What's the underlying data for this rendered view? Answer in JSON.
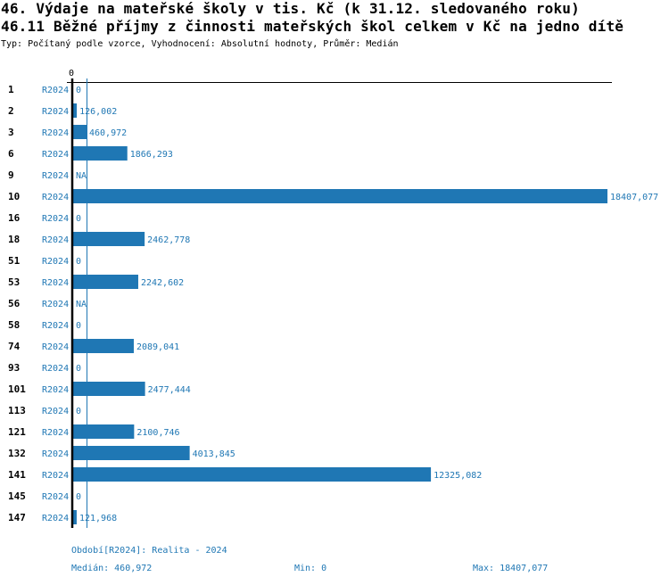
{
  "header": {
    "title": "46. Výdaje na mateřské školy v tis. Kč (k 31.12. sledovaného roku)",
    "subtitle": "46.11 Běžné příjmy z činnosti mateřských škol celkem v Kč na jedno dítě",
    "info": "Typ: Počítaný podle vzorce, Vyhodnocení: Absolutní hodnoty, Průměr: Medián"
  },
  "colors": {
    "bar": "#1f77b4",
    "axis": "#000000",
    "text_blue": "#1f77b4"
  },
  "chart_data": {
    "type": "bar",
    "orientation": "horizontal",
    "axis_zero_label": "0",
    "xlim": [
      0,
      18407.077
    ],
    "median": 460.972,
    "rows": [
      {
        "id": "1",
        "period": "R2024",
        "value": 0,
        "label": "0"
      },
      {
        "id": "2",
        "period": "R2024",
        "value": 126.002,
        "label": "126,002"
      },
      {
        "id": "3",
        "period": "R2024",
        "value": 460.972,
        "label": "460,972"
      },
      {
        "id": "6",
        "period": "R2024",
        "value": 1866.293,
        "label": "1866,293"
      },
      {
        "id": "9",
        "period": "R2024",
        "value": null,
        "label": "NA"
      },
      {
        "id": "10",
        "period": "R2024",
        "value": 18407.077,
        "label": "18407,077"
      },
      {
        "id": "16",
        "period": "R2024",
        "value": 0,
        "label": "0"
      },
      {
        "id": "18",
        "period": "R2024",
        "value": 2462.778,
        "label": "2462,778"
      },
      {
        "id": "51",
        "period": "R2024",
        "value": 0,
        "label": "0"
      },
      {
        "id": "53",
        "period": "R2024",
        "value": 2242.602,
        "label": "2242,602"
      },
      {
        "id": "56",
        "period": "R2024",
        "value": null,
        "label": "NA"
      },
      {
        "id": "58",
        "period": "R2024",
        "value": 0,
        "label": "0"
      },
      {
        "id": "74",
        "period": "R2024",
        "value": 2089.041,
        "label": "2089,041"
      },
      {
        "id": "93",
        "period": "R2024",
        "value": 0,
        "label": "0"
      },
      {
        "id": "101",
        "period": "R2024",
        "value": 2477.444,
        "label": "2477,444"
      },
      {
        "id": "113",
        "period": "R2024",
        "value": 0,
        "label": "0"
      },
      {
        "id": "121",
        "period": "R2024",
        "value": 2100.746,
        "label": "2100,746"
      },
      {
        "id": "132",
        "period": "R2024",
        "value": 4013.845,
        "label": "4013,845"
      },
      {
        "id": "141",
        "period": "R2024",
        "value": 12325.082,
        "label": "12325,082"
      },
      {
        "id": "145",
        "period": "R2024",
        "value": 0,
        "label": "0"
      },
      {
        "id": "147",
        "period": "R2024",
        "value": 121.968,
        "label": "121,968"
      }
    ]
  },
  "footer": {
    "period": "Období[R2024]: Realita - 2024",
    "median": "Medián: 460,972",
    "min": "Min: 0",
    "max": "Max: 18407,077"
  }
}
